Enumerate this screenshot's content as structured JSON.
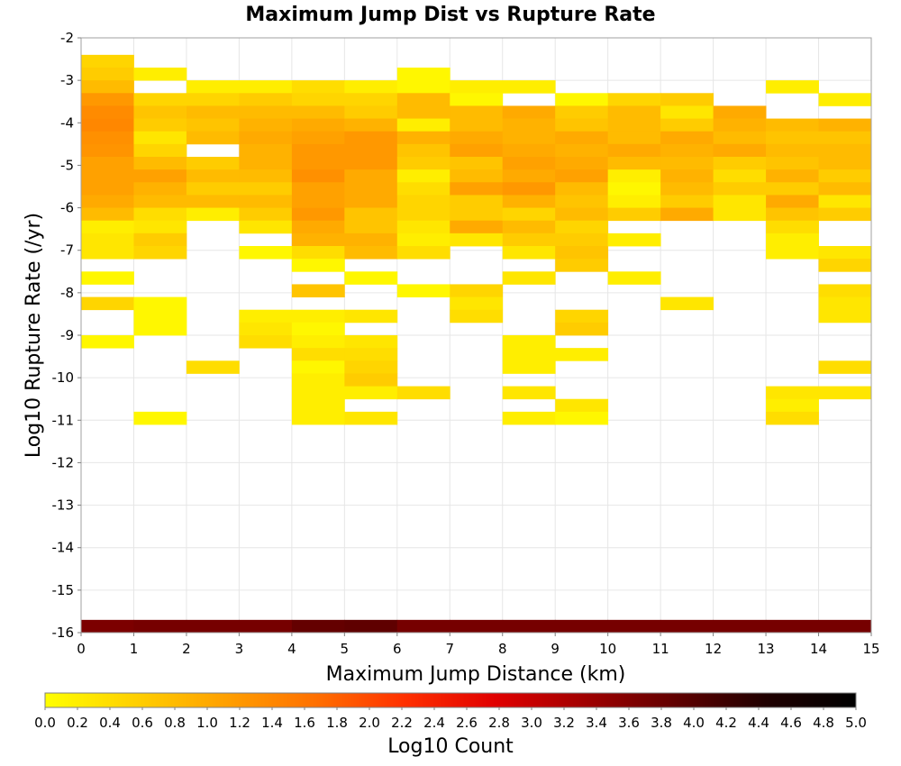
{
  "chart_data": {
    "type": "heatmap",
    "title": "Maximum Jump Dist vs Rupture Rate",
    "xlabel": "Maximum Jump Distance (km)",
    "ylabel": "Log10 Rupture Rate (/yr)",
    "xlim": [
      0,
      15
    ],
    "ylim": [
      -16,
      -2
    ],
    "x_ticks": [
      "0",
      "1",
      "2",
      "3",
      "4",
      "5",
      "6",
      "7",
      "8",
      "9",
      "10",
      "11",
      "12",
      "13",
      "14",
      "15"
    ],
    "y_ticks": [
      "-2",
      "-3",
      "-4",
      "-5",
      "-6",
      "-7",
      "-8",
      "-9",
      "-10",
      "-11",
      "-12",
      "-13",
      "-14",
      "-15",
      "-16"
    ],
    "x_bin_width": 1,
    "y_bin_height": 0.3,
    "grid": true,
    "colorbar": {
      "label": "Log10 Count",
      "min": 0.0,
      "max": 5.0,
      "ticks": [
        "0.0",
        "0.2",
        "0.4",
        "0.6",
        "0.8",
        "1.0",
        "1.2",
        "1.4",
        "1.6",
        "1.8",
        "2.0",
        "2.2",
        "2.4",
        "2.6",
        "2.8",
        "3.0",
        "3.2",
        "3.4",
        "3.6",
        "3.8",
        "4.0",
        "4.2",
        "4.4",
        "4.6",
        "4.8",
        "5.0"
      ],
      "colors": [
        "#ffff00",
        "#ffd000",
        "#ffa000",
        "#ff7000",
        "#ff3000",
        "#e00000",
        "#a00000",
        "#600000",
        "#200000",
        "#000000"
      ]
    },
    "columns": [
      {
        "x": 0,
        "cells": [
          [
            -16,
            3.65
          ],
          [
            -2.7,
            0.5
          ],
          [
            -3.0,
            0.6
          ],
          [
            -3.3,
            0.8
          ],
          [
            -3.6,
            1.2
          ],
          [
            -3.9,
            1.35
          ],
          [
            -4.2,
            1.4
          ],
          [
            -4.5,
            1.3
          ],
          [
            -4.8,
            1.25
          ],
          [
            -5.1,
            1.1
          ],
          [
            -5.4,
            1.1
          ],
          [
            -5.7,
            1.1
          ],
          [
            -6.0,
            1.0
          ],
          [
            -6.3,
            0.8
          ],
          [
            -6.6,
            0.2
          ],
          [
            -6.9,
            0.3
          ],
          [
            -7.2,
            0.3
          ],
          [
            -7.8,
            0.1
          ],
          [
            -8.4,
            0.5
          ],
          [
            -9.3,
            0.1
          ]
        ]
      },
      {
        "x": 1,
        "cells": [
          [
            -16,
            3.7
          ],
          [
            -3.0,
            0.2
          ],
          [
            -3.6,
            0.5
          ],
          [
            -3.9,
            0.7
          ],
          [
            -4.2,
            0.6
          ],
          [
            -4.5,
            0.3
          ],
          [
            -4.8,
            0.5
          ],
          [
            -5.1,
            0.8
          ],
          [
            -5.4,
            1.1
          ],
          [
            -5.7,
            0.9
          ],
          [
            -6.0,
            0.8
          ],
          [
            -6.3,
            0.4
          ],
          [
            -6.6,
            0.3
          ],
          [
            -6.9,
            0.6
          ],
          [
            -7.2,
            0.5
          ],
          [
            -8.4,
            0.1
          ],
          [
            -8.7,
            0.1
          ],
          [
            -9.0,
            0.1
          ],
          [
            -11.1,
            0.1
          ]
        ]
      },
      {
        "x": 2,
        "cells": [
          [
            -16,
            3.7
          ],
          [
            -3.3,
            0.2
          ],
          [
            -3.6,
            0.5
          ],
          [
            -3.9,
            0.8
          ],
          [
            -4.2,
            0.7
          ],
          [
            -4.5,
            0.8
          ],
          [
            -5.1,
            0.6
          ],
          [
            -5.4,
            0.8
          ],
          [
            -5.7,
            0.6
          ],
          [
            -6.0,
            0.8
          ],
          [
            -6.3,
            0.2
          ],
          [
            -9.9,
            0.4
          ]
        ]
      },
      {
        "x": 3,
        "cells": [
          [
            -16,
            3.7
          ],
          [
            -3.3,
            0.2
          ],
          [
            -3.6,
            0.6
          ],
          [
            -3.9,
            0.8
          ],
          [
            -4.2,
            0.9
          ],
          [
            -4.5,
            1.0
          ],
          [
            -4.8,
            0.9
          ],
          [
            -5.1,
            0.9
          ],
          [
            -5.4,
            0.8
          ],
          [
            -5.7,
            0.6
          ],
          [
            -6.0,
            0.8
          ],
          [
            -6.3,
            0.6
          ],
          [
            -6.6,
            0.3
          ],
          [
            -7.2,
            0.1
          ],
          [
            -8.7,
            0.2
          ],
          [
            -9.0,
            0.3
          ],
          [
            -9.3,
            0.4
          ]
        ]
      },
      {
        "x": 4,
        "cells": [
          [
            -16,
            3.85
          ],
          [
            -3.3,
            0.4
          ],
          [
            -3.6,
            0.5
          ],
          [
            -3.9,
            0.8
          ],
          [
            -4.2,
            1.0
          ],
          [
            -4.5,
            1.1
          ],
          [
            -4.8,
            1.2
          ],
          [
            -5.1,
            1.2
          ],
          [
            -5.4,
            1.3
          ],
          [
            -5.7,
            1.1
          ],
          [
            -6.0,
            1.1
          ],
          [
            -6.3,
            1.2
          ],
          [
            -6.6,
            1.0
          ],
          [
            -6.9,
            0.9
          ],
          [
            -7.2,
            0.4
          ],
          [
            -7.5,
            0.1
          ],
          [
            -8.1,
            0.7
          ],
          [
            -8.7,
            0.2
          ],
          [
            -9.0,
            0.1
          ],
          [
            -9.3,
            0.2
          ],
          [
            -9.6,
            0.4
          ],
          [
            -9.9,
            0.1
          ],
          [
            -10.2,
            0.2
          ],
          [
            -10.5,
            0.2
          ],
          [
            -10.8,
            0.2
          ],
          [
            -11.1,
            0.2
          ]
        ]
      },
      {
        "x": 5,
        "cells": [
          [
            -16,
            3.9
          ],
          [
            -3.3,
            0.2
          ],
          [
            -3.6,
            0.5
          ],
          [
            -3.9,
            0.6
          ],
          [
            -4.2,
            0.9
          ],
          [
            -4.5,
            1.2
          ],
          [
            -4.8,
            1.2
          ],
          [
            -5.1,
            1.2
          ],
          [
            -5.4,
            1.0
          ],
          [
            -5.7,
            1.0
          ],
          [
            -6.0,
            1.0
          ],
          [
            -6.3,
            0.7
          ],
          [
            -6.6,
            0.7
          ],
          [
            -6.9,
            0.9
          ],
          [
            -7.2,
            0.8
          ],
          [
            -7.8,
            0.1
          ],
          [
            -8.7,
            0.3
          ],
          [
            -9.3,
            0.3
          ],
          [
            -9.6,
            0.4
          ],
          [
            -9.9,
            0.5
          ],
          [
            -10.2,
            0.6
          ],
          [
            -10.5,
            0.2
          ],
          [
            -11.1,
            0.3
          ]
        ]
      },
      {
        "x": 6,
        "cells": [
          [
            -16,
            3.7
          ],
          [
            -3.0,
            0.1
          ],
          [
            -3.3,
            0.1
          ],
          [
            -3.6,
            0.8
          ],
          [
            -3.9,
            0.8
          ],
          [
            -4.2,
            0.2
          ],
          [
            -4.5,
            0.9
          ],
          [
            -4.8,
            0.7
          ],
          [
            -5.1,
            0.6
          ],
          [
            -5.4,
            0.2
          ],
          [
            -5.7,
            0.4
          ],
          [
            -6.0,
            0.5
          ],
          [
            -6.3,
            0.5
          ],
          [
            -6.6,
            0.3
          ],
          [
            -6.9,
            0.2
          ],
          [
            -7.2,
            0.4
          ],
          [
            -8.1,
            0.1
          ],
          [
            -10.5,
            0.4
          ]
        ]
      },
      {
        "x": 7,
        "cells": [
          [
            -16,
            3.7
          ],
          [
            -3.3,
            0.2
          ],
          [
            -3.6,
            0.1
          ],
          [
            -3.9,
            0.8
          ],
          [
            -4.2,
            0.8
          ],
          [
            -4.5,
            1.0
          ],
          [
            -4.8,
            1.1
          ],
          [
            -5.1,
            0.7
          ],
          [
            -5.4,
            0.8
          ],
          [
            -5.7,
            1.1
          ],
          [
            -6.0,
            0.6
          ],
          [
            -6.3,
            0.6
          ],
          [
            -6.6,
            1.0
          ],
          [
            -6.9,
            0.3
          ],
          [
            -8.1,
            0.5
          ],
          [
            -8.4,
            0.3
          ],
          [
            -8.7,
            0.4
          ]
        ]
      },
      {
        "x": 8,
        "cells": [
          [
            -16,
            3.7
          ],
          [
            -3.3,
            0.2
          ],
          [
            -3.9,
            1.0
          ],
          [
            -4.2,
            0.9
          ],
          [
            -4.5,
            0.9
          ],
          [
            -4.8,
            1.0
          ],
          [
            -5.1,
            1.1
          ],
          [
            -5.4,
            1.0
          ],
          [
            -5.7,
            1.2
          ],
          [
            -6.0,
            0.9
          ],
          [
            -6.3,
            0.5
          ],
          [
            -6.6,
            0.8
          ],
          [
            -6.9,
            0.6
          ],
          [
            -7.2,
            0.3
          ],
          [
            -7.8,
            0.3
          ],
          [
            -9.3,
            0.2
          ],
          [
            -9.6,
            0.2
          ],
          [
            -9.9,
            0.2
          ],
          [
            -10.5,
            0.3
          ],
          [
            -11.1,
            0.2
          ]
        ]
      },
      {
        "x": 9,
        "cells": [
          [
            -16,
            3.7
          ],
          [
            -3.6,
            0.1
          ],
          [
            -3.9,
            0.6
          ],
          [
            -4.2,
            0.7
          ],
          [
            -4.5,
            1.0
          ],
          [
            -4.8,
            0.9
          ],
          [
            -5.1,
            1.0
          ],
          [
            -5.4,
            1.1
          ],
          [
            -5.7,
            0.8
          ],
          [
            -6.0,
            0.7
          ],
          [
            -6.3,
            0.8
          ],
          [
            -6.6,
            0.5
          ],
          [
            -6.9,
            0.6
          ],
          [
            -7.2,
            0.7
          ],
          [
            -7.5,
            0.6
          ],
          [
            -8.7,
            0.5
          ],
          [
            -9.0,
            0.6
          ],
          [
            -9.6,
            0.2
          ],
          [
            -10.8,
            0.3
          ],
          [
            -11.1,
            0.1
          ]
        ]
      },
      {
        "x": 10,
        "cells": [
          [
            -16,
            3.7
          ],
          [
            -3.6,
            0.5
          ],
          [
            -3.9,
            0.8
          ],
          [
            -4.2,
            0.8
          ],
          [
            -4.5,
            0.8
          ],
          [
            -4.8,
            1.0
          ],
          [
            -5.1,
            0.8
          ],
          [
            -5.4,
            0.2
          ],
          [
            -5.7,
            0.1
          ],
          [
            -6.0,
            0.2
          ],
          [
            -6.3,
            0.6
          ],
          [
            -6.9,
            0.2
          ],
          [
            -7.8,
            0.2
          ]
        ]
      },
      {
        "x": 11,
        "cells": [
          [
            -16,
            3.7
          ],
          [
            -3.6,
            0.6
          ],
          [
            -3.9,
            0.3
          ],
          [
            -4.2,
            0.6
          ],
          [
            -4.5,
            1.0
          ],
          [
            -4.8,
            0.9
          ],
          [
            -5.1,
            0.8
          ],
          [
            -5.4,
            0.9
          ],
          [
            -5.7,
            0.8
          ],
          [
            -6.0,
            0.6
          ],
          [
            -6.3,
            1.0
          ],
          [
            -8.4,
            0.3
          ]
        ]
      },
      {
        "x": 12,
        "cells": [
          [
            -16,
            3.7
          ],
          [
            -3.9,
            1.0
          ],
          [
            -4.2,
            0.9
          ],
          [
            -4.5,
            0.8
          ],
          [
            -4.8,
            1.0
          ],
          [
            -5.1,
            0.6
          ],
          [
            -5.4,
            0.4
          ],
          [
            -5.7,
            0.6
          ],
          [
            -6.0,
            0.3
          ],
          [
            -6.3,
            0.3
          ]
        ]
      },
      {
        "x": 13,
        "cells": [
          [
            -16,
            3.7
          ],
          [
            -3.3,
            0.2
          ],
          [
            -4.2,
            0.8
          ],
          [
            -4.5,
            0.7
          ],
          [
            -4.8,
            0.8
          ],
          [
            -5.1,
            0.7
          ],
          [
            -5.4,
            0.9
          ],
          [
            -5.7,
            0.6
          ],
          [
            -6.0,
            1.0
          ],
          [
            -6.3,
            0.7
          ],
          [
            -6.6,
            0.4
          ],
          [
            -6.9,
            0.2
          ],
          [
            -7.2,
            0.2
          ],
          [
            -10.5,
            0.3
          ],
          [
            -10.8,
            0.2
          ],
          [
            -11.1,
            0.4
          ]
        ]
      },
      {
        "x": 14,
        "cells": [
          [
            -16,
            3.7
          ],
          [
            -3.6,
            0.2
          ],
          [
            -4.2,
            0.9
          ],
          [
            -4.5,
            0.7
          ],
          [
            -4.8,
            0.8
          ],
          [
            -5.1,
            0.8
          ],
          [
            -5.4,
            0.6
          ],
          [
            -5.7,
            0.8
          ],
          [
            -6.0,
            0.3
          ],
          [
            -6.3,
            0.6
          ],
          [
            -7.2,
            0.3
          ],
          [
            -7.5,
            0.5
          ],
          [
            -8.1,
            0.4
          ],
          [
            -8.4,
            0.3
          ],
          [
            -8.7,
            0.3
          ],
          [
            -9.9,
            0.4
          ],
          [
            -10.5,
            0.3
          ]
        ]
      }
    ]
  }
}
